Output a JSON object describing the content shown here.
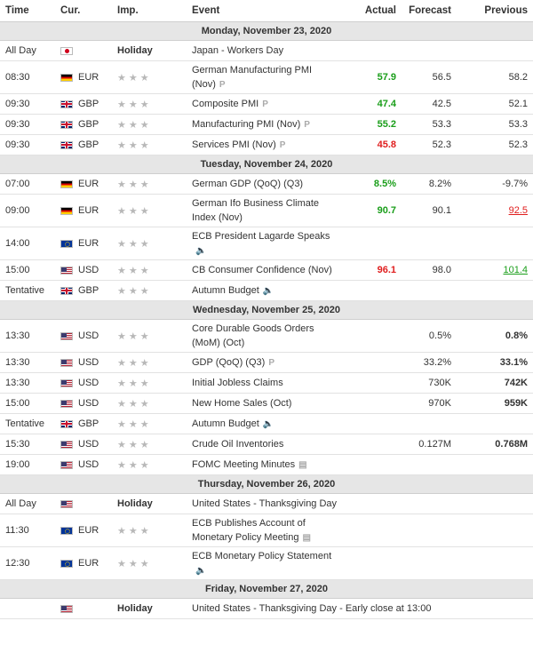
{
  "headers": {
    "time": "Time",
    "cur": "Cur.",
    "imp": "Imp.",
    "event": "Event",
    "actual": "Actual",
    "forecast": "Forecast",
    "previous": "Previous"
  },
  "days": [
    {
      "label": "Monday, November 23, 2020"
    },
    {
      "label": "Tuesday, November 24, 2020"
    },
    {
      "label": "Wednesday, November 25, 2020"
    },
    {
      "label": "Thursday, November 26, 2020"
    },
    {
      "label": "Friday, November 27, 2020"
    }
  ],
  "colors": {
    "positive": "#1a9e1a",
    "negative": "#e01e1e"
  },
  "rows": [
    {
      "time": "All Day",
      "cur": "",
      "flag": "jp",
      "imp": "Holiday",
      "event": "Japan - Workers Day",
      "event2": "",
      "icon": "",
      "actual": "",
      "forecast": "",
      "previous": ""
    },
    {
      "time": "08:30",
      "cur": "EUR",
      "flag": "de",
      "imp": "★★★",
      "event": "German Manufacturing PMI",
      "event2": "(Nov)",
      "icon": "P",
      "actual": "57.9",
      "forecast": "56.5",
      "previous": "58.2"
    },
    {
      "time": "09:30",
      "cur": "GBP",
      "flag": "gb",
      "imp": "★★★",
      "event": "Composite PMI",
      "event2": "",
      "icon": "P",
      "actual": "47.4",
      "forecast": "42.5",
      "previous": "52.1"
    },
    {
      "time": "09:30",
      "cur": "GBP",
      "flag": "gb",
      "imp": "★★★",
      "event": "Manufacturing PMI (Nov)",
      "event2": "",
      "icon": "P",
      "actual": "55.2",
      "forecast": "53.3",
      "previous": "53.3"
    },
    {
      "time": "09:30",
      "cur": "GBP",
      "flag": "gb",
      "imp": "★★★",
      "event": "Services PMI (Nov)",
      "event2": "",
      "icon": "P",
      "actual": "45.8",
      "forecast": "52.3",
      "previous": "52.3"
    },
    {
      "time": "07:00",
      "cur": "EUR",
      "flag": "de",
      "imp": "★★★",
      "event": "German GDP (QoQ) (Q3)",
      "event2": "",
      "icon": "",
      "actual": "8.5%",
      "forecast": "8.2%",
      "previous": "-9.7%"
    },
    {
      "time": "09:00",
      "cur": "EUR",
      "flag": "de",
      "imp": "★★★",
      "event": "German Ifo Business Climate",
      "event2": "Index (Nov)",
      "icon": "",
      "actual": "90.7",
      "forecast": "90.1",
      "previous": "92.5"
    },
    {
      "time": "14:00",
      "cur": "EUR",
      "flag": "eu",
      "imp": "★★★",
      "event": "ECB President Lagarde Speaks",
      "event2": "",
      "icon": "🔈",
      "actual": "",
      "forecast": "",
      "previous": ""
    },
    {
      "time": "15:00",
      "cur": "USD",
      "flag": "us",
      "imp": "★★★",
      "event": "CB Consumer Confidence (Nov)",
      "event2": "",
      "icon": "",
      "actual": "96.1",
      "forecast": "98.0",
      "previous": "101.4"
    },
    {
      "time": "Tentative",
      "cur": "GBP",
      "flag": "gb",
      "imp": "★★★",
      "event": "Autumn Budget",
      "event2": "",
      "icon": "🔈",
      "actual": "",
      "forecast": "",
      "previous": ""
    },
    {
      "time": "13:30",
      "cur": "USD",
      "flag": "us",
      "imp": "★★★",
      "event": "Core Durable Goods Orders",
      "event2": "(MoM) (Oct)",
      "icon": "",
      "actual": "",
      "forecast": "0.5%",
      "previous": "0.8%"
    },
    {
      "time": "13:30",
      "cur": "USD",
      "flag": "us",
      "imp": "★★★",
      "event": "GDP (QoQ) (Q3)",
      "event2": "",
      "icon": "P",
      "actual": "",
      "forecast": "33.2%",
      "previous": "33.1%"
    },
    {
      "time": "13:30",
      "cur": "USD",
      "flag": "us",
      "imp": "★★★",
      "event": "Initial Jobless Claims",
      "event2": "",
      "icon": "",
      "actual": "",
      "forecast": "730K",
      "previous": "742K"
    },
    {
      "time": "15:00",
      "cur": "USD",
      "flag": "us",
      "imp": "★★★",
      "event": "New Home Sales (Oct)",
      "event2": "",
      "icon": "",
      "actual": "",
      "forecast": "970K",
      "previous": "959K"
    },
    {
      "time": "Tentative",
      "cur": "GBP",
      "flag": "gb",
      "imp": "★★★",
      "event": "Autumn Budget",
      "event2": "",
      "icon": "🔈",
      "actual": "",
      "forecast": "",
      "previous": ""
    },
    {
      "time": "15:30",
      "cur": "USD",
      "flag": "us",
      "imp": "★★★",
      "event": "Crude Oil Inventories",
      "event2": "",
      "icon": "",
      "actual": "",
      "forecast": "0.127M",
      "previous": "0.768M"
    },
    {
      "time": "19:00",
      "cur": "USD",
      "flag": "us",
      "imp": "★★★",
      "event": "FOMC Meeting Minutes",
      "event2": "",
      "icon": "▤",
      "actual": "",
      "forecast": "",
      "previous": ""
    },
    {
      "time": "All Day",
      "cur": "",
      "flag": "us",
      "imp": "Holiday",
      "event": "United States - Thanksgiving Day",
      "event2": "",
      "icon": "",
      "actual": "",
      "forecast": "",
      "previous": ""
    },
    {
      "time": "11:30",
      "cur": "EUR",
      "flag": "eu",
      "imp": "★★★",
      "event": "ECB Publishes Account of",
      "event2": "Monetary Policy Meeting",
      "icon": "▤",
      "actual": "",
      "forecast": "",
      "previous": ""
    },
    {
      "time": "12:30",
      "cur": "EUR",
      "flag": "eu",
      "imp": "★★★",
      "event": "ECB Monetary Policy Statement",
      "event2": "",
      "icon": "🔈",
      "actual": "",
      "forecast": "",
      "previous": ""
    },
    {
      "time": "",
      "cur": "",
      "flag": "us",
      "imp": "Holiday",
      "event": "United States - Thanksgiving Day - Early close at 13:00",
      "event2": "",
      "icon": "",
      "actual": "",
      "forecast": "",
      "previous": ""
    }
  ]
}
